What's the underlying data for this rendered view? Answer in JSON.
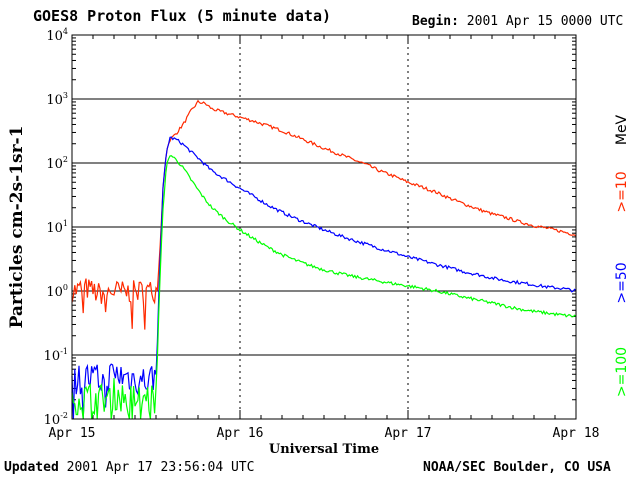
{
  "header": {
    "title": "GOES8 Proton Flux (5 minute data)",
    "begin_label": "Begin:",
    "begin_value": "2001 Apr 15 0000 UTC"
  },
  "footer": {
    "updated_label": "Updated",
    "updated_value": "2001 Apr 17 23:56:04 UTC",
    "credit": "NOAA/SEC Boulder, CO USA"
  },
  "chart_data": {
    "type": "line",
    "title": "GOES8 Proton Flux (5 minute data)",
    "xlabel": "Universal Time",
    "ylabel": "Particles cm-2s-1sr-1",
    "yscale": "log",
    "x_unit": "hours since 2001 Apr 15 0000 UTC",
    "xlim": [
      0,
      72
    ],
    "ylim": [
      0.01,
      10000
    ],
    "x_ticks": [
      {
        "x": 0,
        "label": "Apr 15"
      },
      {
        "x": 24,
        "label": "Apr 16"
      },
      {
        "x": 48,
        "label": "Apr 17"
      },
      {
        "x": 72,
        "label": "Apr 18"
      }
    ],
    "y_ticks": [
      {
        "y": 0.01,
        "base": "10",
        "exp": "-2"
      },
      {
        "y": 0.1,
        "base": "10",
        "exp": "-1"
      },
      {
        "y": 1,
        "base": "10",
        "exp": "0"
      },
      {
        "y": 10,
        "base": "10",
        "exp": "1"
      },
      {
        "y": 100,
        "base": "10",
        "exp": "2"
      },
      {
        "y": 1000,
        "base": "10",
        "exp": "3"
      },
      {
        "y": 10000,
        "base": "10",
        "exp": "4"
      }
    ],
    "gridlines_y": [
      0.1,
      1,
      10,
      100,
      1000
    ],
    "legend_unit": "MeV",
    "series": [
      {
        "name": ">=10",
        "color": "#ff2a00",
        "x": [
          0,
          2,
          4,
          6,
          8,
          10,
          12,
          12.5,
          13,
          13.5,
          14,
          15,
          16,
          17,
          18,
          19,
          20,
          22,
          24,
          26,
          28,
          30,
          32,
          34,
          36,
          38,
          40,
          42,
          44,
          46,
          48,
          50,
          52,
          54,
          56,
          58,
          60,
          62,
          64,
          66,
          68,
          70,
          72
        ],
        "values": [
          1.0,
          1.1,
          0.9,
          1.0,
          0.95,
          1.0,
          1.0,
          3,
          40,
          160,
          230,
          300,
          420,
          650,
          900,
          850,
          700,
          600,
          520,
          450,
          380,
          320,
          260,
          210,
          170,
          140,
          115,
          95,
          75,
          62,
          50,
          42,
          35,
          28,
          23,
          19,
          16,
          14,
          12,
          10.5,
          9.5,
          8.5,
          7.5
        ]
      },
      {
        "name": ">=50",
        "color": "#0000ff",
        "x": [
          0,
          2,
          4,
          6,
          8,
          10,
          12,
          12.5,
          13,
          13.5,
          14,
          15,
          16,
          17,
          18,
          19,
          20,
          22,
          24,
          26,
          28,
          30,
          32,
          34,
          36,
          38,
          40,
          42,
          44,
          46,
          48,
          50,
          52,
          54,
          56,
          58,
          60,
          62,
          64,
          66,
          68,
          70,
          72
        ],
        "values": [
          0.04,
          0.045,
          0.04,
          0.05,
          0.045,
          0.04,
          0.045,
          2,
          40,
          150,
          250,
          230,
          190,
          150,
          120,
          95,
          75,
          55,
          40,
          30,
          22,
          17,
          13.5,
          11,
          9,
          7.5,
          6.3,
          5.4,
          4.6,
          4.0,
          3.4,
          3.0,
          2.6,
          2.3,
          2.0,
          1.8,
          1.6,
          1.45,
          1.35,
          1.25,
          1.15,
          1.1,
          1.0
        ]
      },
      {
        "name": ">=100",
        "color": "#00ff00",
        "x": [
          0,
          2,
          4,
          6,
          8,
          10,
          12,
          12.5,
          13,
          13.5,
          14,
          15,
          16,
          17,
          18,
          19,
          20,
          22,
          24,
          26,
          28,
          30,
          32,
          34,
          36,
          38,
          40,
          42,
          44,
          46,
          48,
          50,
          52,
          54,
          56,
          58,
          60,
          62,
          64,
          66,
          68,
          70,
          72
        ],
        "values": [
          0.02,
          0.022,
          0.02,
          0.025,
          0.02,
          0.022,
          0.02,
          1,
          20,
          90,
          135,
          110,
          80,
          55,
          38,
          27,
          20,
          13,
          9,
          6.5,
          4.8,
          3.7,
          3.0,
          2.5,
          2.15,
          1.9,
          1.7,
          1.55,
          1.42,
          1.3,
          1.2,
          1.1,
          1.0,
          0.9,
          0.8,
          0.72,
          0.65,
          0.58,
          0.52,
          0.48,
          0.45,
          0.42,
          0.4
        ]
      }
    ]
  }
}
